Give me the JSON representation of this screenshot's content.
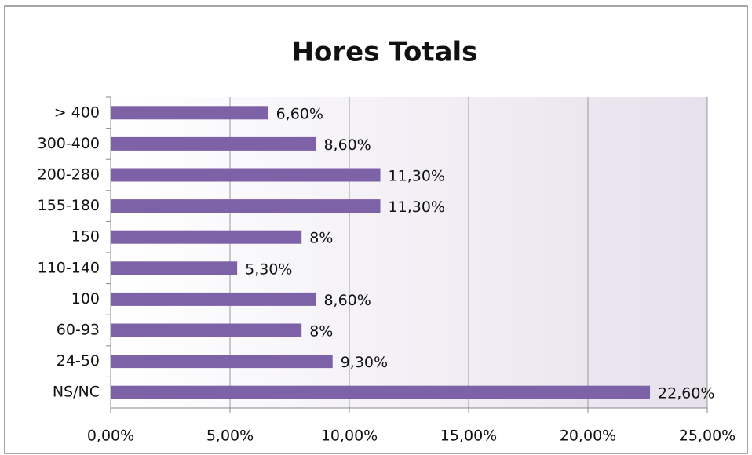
{
  "chart_data": {
    "type": "bar",
    "orientation": "horizontal",
    "title": "Hores Totals",
    "categories": [
      "> 400",
      "300-400",
      "200-280",
      "155-180",
      "150",
      "110-140",
      "100",
      "60-93",
      "24-50",
      "NS/NC"
    ],
    "values": [
      6.6,
      8.6,
      11.3,
      11.3,
      8,
      5.3,
      8.6,
      8,
      9.3,
      22.6
    ],
    "value_labels": [
      "6,60%",
      "8,60%",
      "11,30%",
      "11,30%",
      "8%",
      "5,30%",
      "8,60%",
      "8%",
      "9,30%",
      "22,60%"
    ],
    "color": "#7e62a8",
    "xlim": [
      0,
      25
    ],
    "xticks": [
      {
        "value": 0,
        "label": "0,00%"
      },
      {
        "value": 5,
        "label": "5,00%"
      },
      {
        "value": 10,
        "label": "10,00%"
      },
      {
        "value": 15,
        "label": "15,00%"
      },
      {
        "value": 20,
        "label": "20,00%"
      },
      {
        "value": 25,
        "label": "25,00%"
      }
    ],
    "grid": true
  }
}
